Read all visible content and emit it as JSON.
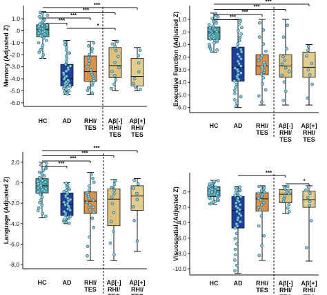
{
  "colors": {
    "HC": "#4aa89e",
    "AD": "#1f3f9e",
    "RHI/TES": "#d9904a",
    "Aβ[-] RHI/TES": "#dcc07c",
    "Aβ[+] RHI/TES": "#e4cd8c",
    "point_fill": "#7fd1c9",
    "point_stroke": "#244b8a",
    "ink": "#111111"
  },
  "groups": [
    "HC",
    "AD",
    "RHI/ TES",
    "Aβ[-] RHI/ TES",
    "Aβ[+] RHI/ TES"
  ],
  "chart_data": [
    {
      "type": "box",
      "panel": "memory",
      "ylabel": "Memory (Adjusted Z)",
      "ylim": [
        -6.3,
        2.1
      ],
      "yticks": [
        1.0,
        0.0,
        -1.0,
        -2.0,
        -3.0,
        -4.0,
        -5.0,
        -6.0
      ],
      "ytick_labels": [
        "1.0",
        ".0",
        "-1.0",
        "-2.0",
        "-3.0",
        "-4.0",
        "-5.0",
        "-6.0"
      ],
      "categories": [
        "HC",
        "AD",
        "RHI/ TES",
        "Aβ[-] RHI/ TES",
        "Aβ[+] RHI/ TES"
      ],
      "boxes": [
        {
          "min": -2.3,
          "q1": -0.5,
          "median": 0.1,
          "q3": 0.5,
          "max": 1.6
        },
        {
          "min": -5.3,
          "q1": -4.6,
          "median": -4.0,
          "q3": -2.8,
          "max": -0.8
        },
        {
          "min": -5.3,
          "q1": -4.2,
          "median": -3.4,
          "q3": -2.1,
          "max": -0.9
        },
        {
          "min": -5.0,
          "q1": -3.9,
          "median": -2.9,
          "q3": -1.4,
          "max": -0.8
        },
        {
          "min": -5.0,
          "q1": -4.6,
          "median": -3.8,
          "q3": -2.3,
          "max": -1.4
        }
      ],
      "divider_after": 3,
      "significance": [
        {
          "from": 1,
          "to": 5,
          "label": "***"
        },
        {
          "from": 1,
          "to": 4,
          "label": "***"
        },
        {
          "from": 1,
          "to": 3,
          "label": "***"
        },
        {
          "from": 1,
          "to": 2,
          "label": "***"
        },
        {
          "from": 2,
          "to": 4,
          "label": "*"
        }
      ]
    },
    {
      "type": "box",
      "panel": "executive",
      "ylabel": "Executive Function (Adjusted Z)",
      "ylim": [
        -6.4,
        2.1
      ],
      "yticks": [
        1.0,
        0.0,
        -1.0,
        -2.0,
        -3.0,
        -4.0,
        -5.0,
        -6.0
      ],
      "ytick_labels": [
        "1.0",
        ".0",
        "-1.0",
        "-2.0",
        "-3.0",
        "-4.0",
        "-5.0",
        "-6.0"
      ],
      "categories": [
        "HC",
        "AD",
        "RHI/ TES",
        "Aβ[-] RHI/ TES",
        "Aβ[+] RHI/ TES"
      ],
      "boxes": [
        {
          "min": -1.6,
          "q1": -0.6,
          "median": 0.0,
          "q3": 0.4,
          "max": 1.5
        },
        {
          "min": -6.0,
          "q1": -3.9,
          "median": -2.8,
          "q3": -1.2,
          "max": 1.0
        },
        {
          "min": -5.8,
          "q1": -3.4,
          "median": -2.7,
          "q3": -1.8,
          "max": 1.0
        },
        {
          "min": -5.8,
          "q1": -3.6,
          "median": -2.7,
          "q3": -1.8,
          "max": 1.0
        },
        {
          "min": -5.8,
          "q1": -3.6,
          "median": -2.8,
          "q3": -1.6,
          "max": -1.0
        }
      ],
      "divider_after": 3,
      "significance": [
        {
          "from": 1,
          "to": 5,
          "label": "***"
        },
        {
          "from": 1,
          "to": 4,
          "label": "***"
        },
        {
          "from": 1,
          "to": 3,
          "label": "***"
        },
        {
          "from": 1,
          "to": 2,
          "label": "***"
        }
      ]
    },
    {
      "type": "box",
      "panel": "language",
      "ylabel": "Language (Adjusted Z)",
      "ylim": [
        -8.4,
        3.0
      ],
      "yticks": [
        2.0,
        0.0,
        -2.0,
        -4.0,
        -6.0,
        -8.0
      ],
      "ytick_labels": [
        "2.0",
        ".0",
        "-2.0",
        "-4.0",
        "-6.0",
        "-8.0"
      ],
      "categories": [
        "HC",
        "AD",
        "RHI/ TES",
        "Aβ[-] RHI/ TES",
        "Aβ[+] RHI/ TES"
      ],
      "boxes": [
        {
          "min": -3.4,
          "q1": -1.0,
          "median": -0.3,
          "q3": 0.4,
          "max": 2.0
        },
        {
          "min": -4.0,
          "q1": -3.2,
          "median": -2.1,
          "q3": -1.0,
          "max": 0.0
        },
        {
          "min": -7.6,
          "q1": -3.0,
          "median": -1.8,
          "q3": -0.9,
          "max": 1.0
        },
        {
          "min": -7.6,
          "q1": -4.2,
          "median": -1.6,
          "q3": -0.6,
          "max": 0.3
        },
        {
          "min": -6.7,
          "q1": -2.7,
          "median": -1.3,
          "q3": -0.3,
          "max": 0.4
        }
      ],
      "divider_after": 3,
      "significance": [
        {
          "from": 1,
          "to": 5,
          "label": "***"
        },
        {
          "from": 1,
          "to": 4,
          "label": "***"
        },
        {
          "from": 1,
          "to": 3,
          "label": "***"
        },
        {
          "from": 1,
          "to": 2,
          "label": "***"
        }
      ]
    },
    {
      "type": "box",
      "panel": "visuospatial",
      "ylabel": "Visuospatial (Adjusted Z)",
      "ylim": [
        -10.8,
        2.5
      ],
      "yticks": [
        0.0,
        -2.0,
        -4.0,
        -6.0,
        -8.0,
        -10.0
      ],
      "ytick_labels": [
        ".0",
        "-2.0",
        "-4.0",
        "-6.0",
        "-8.0",
        "-10.0"
      ],
      "categories": [
        "HC",
        "AD",
        "RHI/ TES",
        "Aβ[-] RHI/ TES",
        "Aβ[+] RHI/ TES"
      ],
      "boxes": [
        {
          "min": -1.6,
          "q1": -0.6,
          "median": 0.2,
          "q3": 0.7,
          "max": 1.5
        },
        {
          "min": -10.6,
          "q1": -4.7,
          "median": -2.4,
          "q3": -0.6,
          "max": 0.7
        },
        {
          "min": -8.9,
          "q1": -2.5,
          "median": -0.9,
          "q3": -0.1,
          "max": 0.8
        },
        {
          "min": -2.8,
          "q1": -1.4,
          "median": -0.3,
          "q3": 0.3,
          "max": 0.8
        },
        {
          "min": -9.0,
          "q1": -2.0,
          "median": -1.0,
          "q3": 0.1,
          "max": 0.8
        }
      ],
      "divider_after": 3,
      "significance": [
        {
          "from": 2,
          "to": 4,
          "label": "***"
        },
        {
          "from": 4,
          "to": 5,
          "label": "*"
        }
      ]
    }
  ]
}
